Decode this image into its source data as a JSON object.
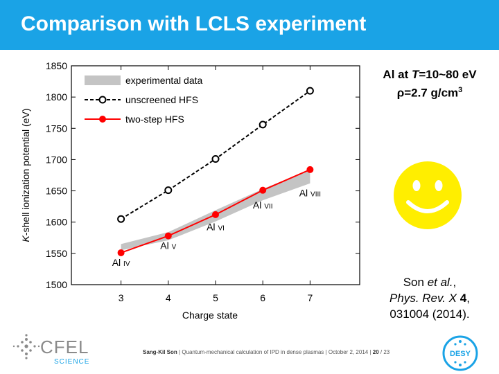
{
  "slide": {
    "title": "Comparison with LCLS experiment",
    "condition_line1_pre": "Al at ",
    "condition_line1_T": "T",
    "condition_line1_post": "=10~80 eV",
    "condition_line2_pre": "ρ=2.7 g/cm",
    "condition_line2_sup": "3",
    "reference": {
      "author": "Son ",
      "etal": "et al.",
      "comma1": ",",
      "journal": "Phys. Rev. X ",
      "volume": "4",
      "comma2": ",",
      "pages_year": "031004 (2014)."
    },
    "footer": {
      "author": "Sang-Kil Son",
      "sep1": "  |  ",
      "talk": "Quantum-mechanical calculation of IPD in dense plasmas",
      "sep2": "  |  ",
      "date": "October 2, 2014",
      "sep3": "  |  ",
      "page": "20",
      "total": " / 23"
    },
    "logos": {
      "cfel": "CFEL",
      "cfel_sub": "SCIENCE",
      "desy": "DESY"
    },
    "smiley_color": "#ffee00",
    "accent_color": "#1aa3e6"
  },
  "chart_data": {
    "type": "line",
    "x": [
      3,
      4,
      5,
      6,
      7
    ],
    "xlabel": "Charge state",
    "ylabel_italic": "K",
    "ylabel_rest": "-shell ionization potential (eV)",
    "xlim": [
      1.95,
      8.05
    ],
    "ylim": [
      1500,
      1850
    ],
    "xticks": [
      3,
      4,
      5,
      6,
      7
    ],
    "yticks": [
      1500,
      1550,
      1600,
      1650,
      1700,
      1750,
      1800,
      1850
    ],
    "legend_position": "top-left",
    "band": {
      "name": "experimental data",
      "color": "#c4c4c4",
      "lower": [
        1555,
        1571,
        1601,
        1635,
        1662
      ],
      "upper": [
        1565,
        1584,
        1619,
        1653,
        1684
      ]
    },
    "series": [
      {
        "name": "unscreened HFS",
        "values": [
          1605,
          1651,
          1701,
          1756,
          1810
        ],
        "color": "#000000",
        "style": "dashed",
        "marker": "open-circle"
      },
      {
        "name": "two-step HFS",
        "values": [
          1551,
          1578,
          1612,
          1651,
          1684
        ],
        "color": "#ff0000",
        "style": "solid",
        "marker": "filled-circle"
      }
    ],
    "annotations": [
      {
        "base": "Al",
        "roman": "IV",
        "x": 3,
        "y": 1530
      },
      {
        "base": "Al",
        "roman": "V",
        "x": 4,
        "y": 1557
      },
      {
        "base": "Al",
        "roman": "VI",
        "x": 5,
        "y": 1587
      },
      {
        "base": "Al",
        "roman": "VII",
        "x": 6,
        "y": 1622
      },
      {
        "base": "Al",
        "roman": "VIII",
        "x": 7,
        "y": 1641
      }
    ]
  }
}
